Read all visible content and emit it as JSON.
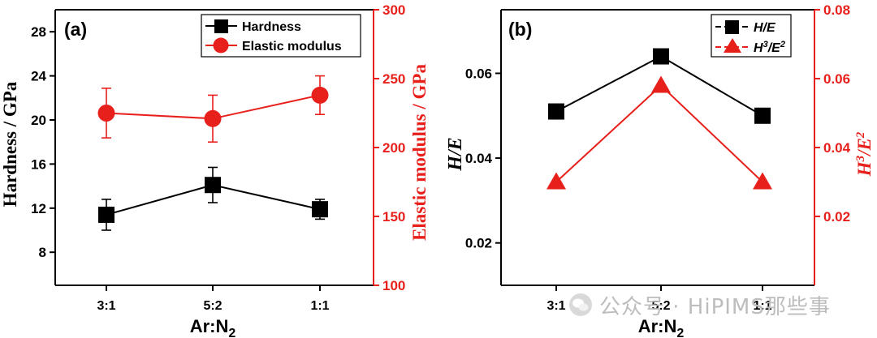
{
  "watermark": "公众号 · HiPIMS那些事",
  "chart_data": [
    {
      "panel": "(a)",
      "type": "line",
      "categories": [
        "3:1",
        "5:2",
        "1:1"
      ],
      "xlabel_main": "Ar:N",
      "xlabel_sub": "2",
      "ylabel_left": "Hardness / GPa",
      "ylabel_right": "Elastic modulus / GPa",
      "ylim_left": [
        5,
        30
      ],
      "ylim_right": [
        100,
        300
      ],
      "yticks_left": [
        "8",
        "12",
        "16",
        "20",
        "24",
        "28"
      ],
      "yticks_right": [
        "100",
        "150",
        "200",
        "250",
        "300"
      ],
      "series": [
        {
          "name": "Hardness",
          "axis": "left",
          "color": "#000000",
          "marker": "square",
          "values": [
            11.4,
            14.1,
            11.9
          ],
          "errors": [
            1.4,
            1.6,
            0.9
          ]
        },
        {
          "name": "Elastic modulus",
          "axis": "right",
          "color": "#e8201c",
          "marker": "circle",
          "values": [
            225,
            221,
            238
          ],
          "errors": [
            18,
            17,
            14
          ]
        }
      ],
      "legend": "top-right"
    },
    {
      "panel": "(b)",
      "type": "line",
      "categories": [
        "3:1",
        "5:2",
        "1:1"
      ],
      "xlabel_main": "Ar:N",
      "xlabel_sub": "2",
      "ylabel_left": "H/E",
      "ylabel_right_main": "H",
      "ylabel_right_sup1": "3",
      "ylabel_right_mid": "/E",
      "ylabel_right_sup2": "2",
      "ylim_left": [
        0.01,
        0.075
      ],
      "ylim_right": [
        0,
        0.08
      ],
      "yticks_left": [
        "0.02",
        "0.04",
        "0.06"
      ],
      "yticks_right": [
        "0.02",
        "0.04",
        "0.06",
        "0.08"
      ],
      "series": [
        {
          "name": "H/E",
          "axis": "left",
          "color": "#000000",
          "marker": "square",
          "values": [
            0.051,
            0.064,
            0.05
          ]
        },
        {
          "name_main": "H",
          "name_sup1": "3",
          "name_mid": "/E",
          "name_sup2": "2",
          "axis": "right",
          "color": "#e8201c",
          "marker": "triangle",
          "values": [
            0.03,
            0.058,
            0.03
          ]
        }
      ],
      "legend": "top-right"
    }
  ]
}
